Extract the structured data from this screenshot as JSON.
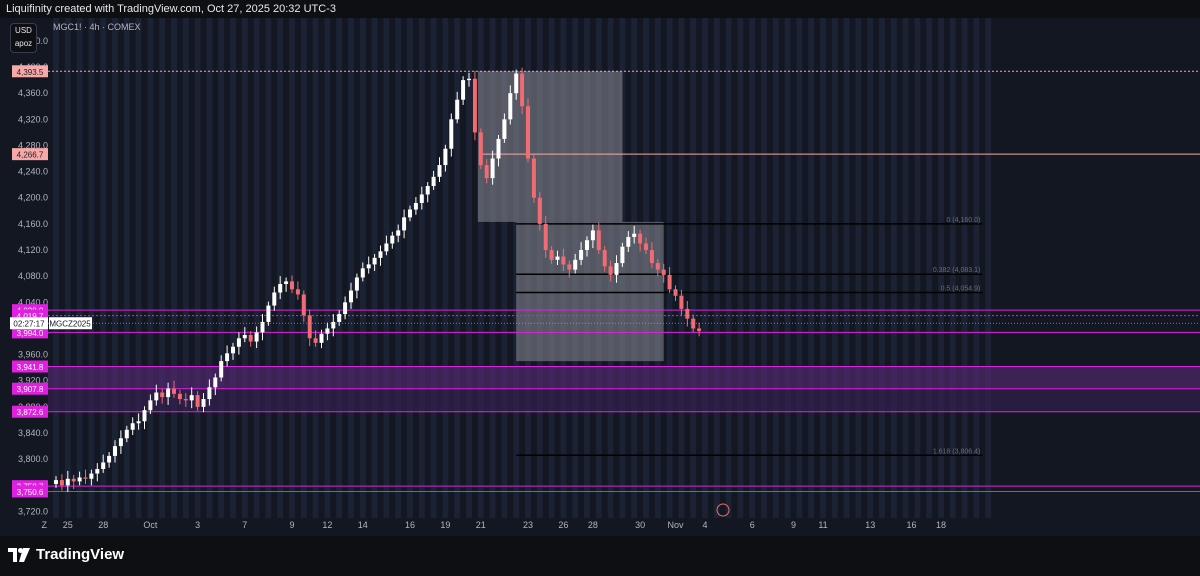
{
  "header": {
    "title": "Liquifinity created with TradingView.com, Oct 27, 2025 20:32 UTC-3",
    "currency": "USD",
    "unit": "apoz",
    "symbol": "MGC1! · 4h · COMEX"
  },
  "footer": {
    "brand": "TradingView"
  },
  "colors": {
    "background": "#131722",
    "session_band": "#1b2233",
    "bull": "#ffffff",
    "bear": "#f06c72",
    "magenta": "#e020e0",
    "zone_fill": "#5a2a78",
    "gray_box": "#8a8d96",
    "label_red": "#f7a8a8",
    "level_red": "#e89a9a"
  },
  "chart_data": {
    "type": "candlestick",
    "title": "MGC1! · 4h · COMEX",
    "ylim": [
      3710,
      4475
    ],
    "y_ticks": [
      3720,
      3760,
      3800,
      3840,
      3880,
      3920,
      3960,
      4000,
      4040,
      4080,
      4120,
      4160,
      4200,
      4240,
      4280,
      4320,
      4360,
      4400,
      4440
    ],
    "x_ticks": [
      {
        "label": "Z",
        "idx": -2
      },
      {
        "label": "25",
        "idx": 2
      },
      {
        "label": "28",
        "idx": 8
      },
      {
        "label": "Oct",
        "idx": 16
      },
      {
        "label": "3",
        "idx": 24
      },
      {
        "label": "7",
        "idx": 32
      },
      {
        "label": "9",
        "idx": 40
      },
      {
        "label": "12",
        "idx": 46
      },
      {
        "label": "14",
        "idx": 52
      },
      {
        "label": "16",
        "idx": 60
      },
      {
        "label": "19",
        "idx": 66
      },
      {
        "label": "21",
        "idx": 72
      },
      {
        "label": "23",
        "idx": 80
      },
      {
        "label": "26",
        "idx": 86
      },
      {
        "label": "28",
        "idx": 91
      },
      {
        "label": "30",
        "idx": 99
      },
      {
        "label": "Nov",
        "idx": 105
      },
      {
        "label": "4",
        "idx": 110
      },
      {
        "label": "6",
        "idx": 118
      },
      {
        "label": "9",
        "idx": 125
      },
      {
        "label": "11",
        "idx": 130
      },
      {
        "label": "13",
        "idx": 138
      },
      {
        "label": "16",
        "idx": 145
      },
      {
        "label": "18",
        "idx": 150
      }
    ],
    "closes": [
      3768,
      3760,
      3770,
      3766,
      3772,
      3770,
      3778,
      3785,
      3795,
      3805,
      3820,
      3832,
      3845,
      3855,
      3858,
      3875,
      3890,
      3902,
      3895,
      3908,
      3900,
      3892,
      3890,
      3898,
      3880,
      3892,
      3910,
      3925,
      3950,
      3962,
      3972,
      3985,
      3990,
      3980,
      3994,
      4010,
      4035,
      4055,
      4068,
      4072,
      4060,
      4052,
      4020,
      3985,
      3978,
      3992,
      4000,
      4010,
      4022,
      4040,
      4058,
      4078,
      4092,
      4098,
      4108,
      4118,
      4130,
      4142,
      4150,
      4170,
      4182,
      4192,
      4205,
      4218,
      4232,
      4250,
      4275,
      4320,
      4350,
      4380,
      4382,
      4300,
      4250,
      4230,
      4260,
      4290,
      4320,
      4360,
      4390,
      4340,
      4260,
      4200,
      4160,
      4120,
      4105,
      4110,
      4098,
      4090,
      4105,
      4120,
      4135,
      4150,
      4120,
      4095,
      4082,
      4100,
      4125,
      4140,
      4145,
      4130,
      4120,
      4100,
      4090,
      4082,
      4060,
      4050,
      4030,
      4015,
      4000,
      3996
    ],
    "levels": [
      {
        "label": "4,393.5",
        "price": 4393.5,
        "color": "#f7a8a8",
        "kind": "dotted"
      },
      {
        "label": "4,266.7",
        "price": 4266.7,
        "color": "#f7a8a8",
        "kind": "line"
      },
      {
        "label": "4,028.0",
        "price": 4028.0,
        "color": "#e020e0",
        "kind": "line"
      },
      {
        "label": "4,019.7",
        "price": 4019.7,
        "color": "#e020e0",
        "kind": "dotted"
      },
      {
        "label": "3,994.0",
        "price": 3994.0,
        "color": "#e020e0",
        "kind": "line"
      },
      {
        "label": "3,941.8",
        "price": 3941.8,
        "color": "#e020e0",
        "kind": "line"
      },
      {
        "label": "3,907.8",
        "price": 3907.8,
        "color": "#e020e0",
        "kind": "line"
      },
      {
        "label": "3,872.6",
        "price": 3872.6,
        "color": "#e020e0",
        "kind": "line"
      },
      {
        "label": "3,758.7",
        "price": 3758.7,
        "color": "#e020e0",
        "kind": "line"
      },
      {
        "label": "3,750.6",
        "price": 3750.6,
        "color": "#e020e0",
        "kind": "line"
      }
    ],
    "current_price": {
      "time": "02:27:17",
      "symbol": "MGCZ2025",
      "price": 4008
    },
    "zones": [
      {
        "from": 3941.8,
        "to": 3907.8,
        "color": "#5a2a78"
      },
      {
        "from": 3907.8,
        "to": 3872.6,
        "color": "#3a1f55"
      }
    ],
    "boxes": [
      {
        "x0": 71.5,
        "x1": 96,
        "top": 4393.5,
        "bottom": 4163,
        "color": "#8a8d96"
      },
      {
        "x0": 78,
        "x1": 103,
        "top": 4163,
        "bottom": 3950,
        "color": "#8a8d96"
      }
    ],
    "fib": {
      "x0": 78,
      "x1": 157,
      "levels": [
        {
          "label": "0 (4,160.0)",
          "price": 4160
        },
        {
          "label": "0.382 (4,083.1)",
          "price": 4083
        },
        {
          "label": "0.5 (4,054.9)",
          "price": 4055
        },
        {
          "label": "1.618 (3,806.4)",
          "price": 3806
        }
      ]
    }
  }
}
